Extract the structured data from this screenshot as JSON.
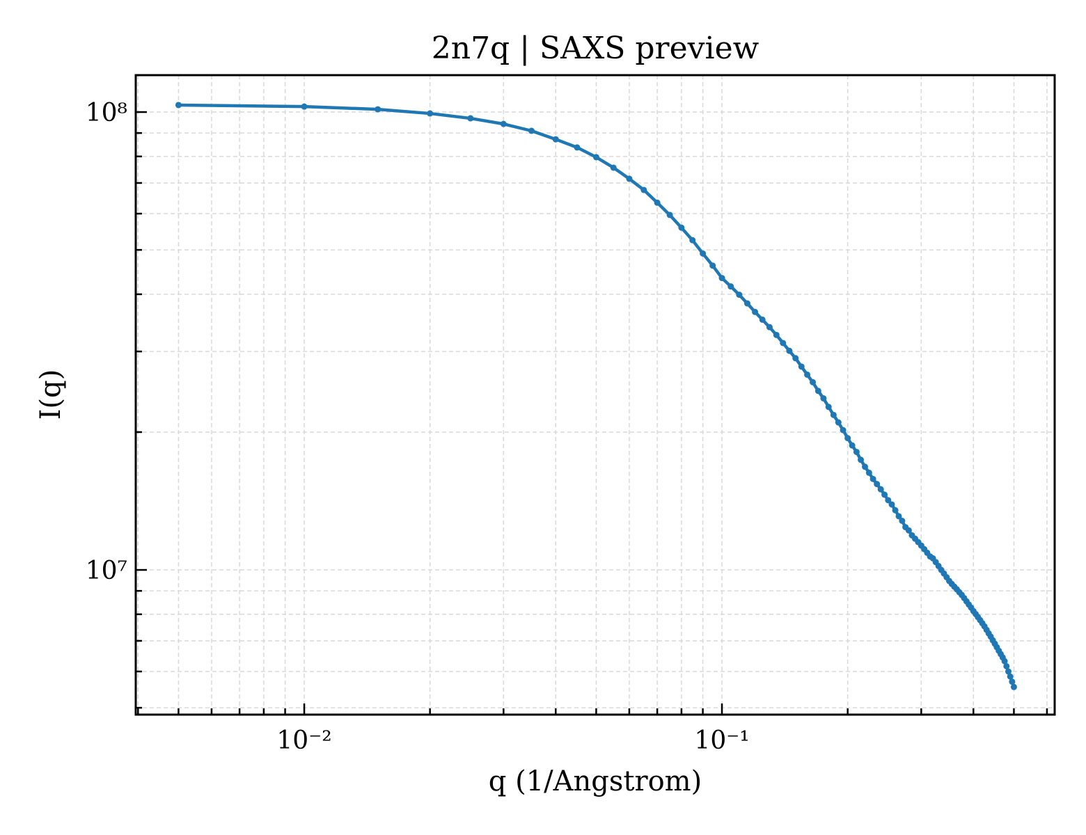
{
  "chart_data": {
    "type": "line",
    "title": "2n7q | SAXS preview",
    "x_label": "q (1/Angstrom)",
    "y_label": "I(q)",
    "x_scale": "log",
    "y_scale": "log",
    "grid": true,
    "color": "#1f77b4",
    "x": [
      0.005,
      0.01,
      0.015,
      0.02,
      0.025,
      0.03,
      0.035,
      0.04,
      0.045,
      0.05,
      0.055,
      0.06,
      0.065,
      0.07,
      0.075,
      0.08,
      0.085,
      0.09,
      0.095,
      0.1,
      0.105,
      0.11,
      0.115,
      0.12,
      0.125,
      0.13,
      0.135,
      0.14,
      0.145,
      0.15,
      0.155,
      0.16,
      0.165,
      0.17,
      0.175,
      0.18,
      0.185,
      0.19,
      0.195,
      0.2,
      0.205,
      0.21,
      0.215,
      0.22,
      0.225,
      0.23,
      0.235,
      0.24,
      0.245,
      0.25,
      0.255,
      0.26,
      0.265,
      0.27,
      0.275,
      0.28,
      0.285,
      0.29,
      0.295,
      0.3,
      0.305,
      0.31,
      0.315,
      0.32,
      0.325,
      0.33,
      0.335,
      0.34,
      0.345,
      0.35,
      0.355,
      0.36,
      0.365,
      0.37,
      0.375,
      0.38,
      0.385,
      0.39,
      0.395,
      0.4,
      0.405,
      0.41,
      0.415,
      0.42,
      0.425,
      0.43,
      0.435,
      0.44,
      0.445,
      0.45,
      0.455,
      0.46,
      0.465,
      0.47,
      0.475,
      0.48,
      0.485,
      0.49,
      0.495,
      0.5
    ],
    "values": [
      103600000.0,
      102800000.0,
      101400000.0,
      99300000.0,
      96900000.0,
      94200000.0,
      91000000.0,
      87200000.0,
      83700000.0,
      79700000.0,
      75600000.0,
      71500000.0,
      67600000.0,
      63400000.0,
      59600000.0,
      55900000.0,
      52500000.0,
      49100000.0,
      46200000.0,
      43400000.0,
      41600000.0,
      39900000.0,
      38200000.0,
      36600000.0,
      35200000.0,
      33900000.0,
      32600000.0,
      31300000.0,
      30100000.0,
      29000000.0,
      27800000.0,
      26700000.0,
      25700000.0,
      24600000.0,
      23700000.0,
      22700000.0,
      21800000.0,
      21000000.0,
      20200000.0,
      19400000.0,
      18700000.0,
      18100000.0,
      17400000.0,
      16800000.0,
      16300000.0,
      15800000.0,
      15400000.0,
      15000000.0,
      14600000.0,
      14200000.0,
      13900000.0,
      13500000.0,
      13100000.0,
      12800000.0,
      12400000.0,
      12200000.0,
      11900000.0,
      11700000.0,
      11500000.0,
      11300000.0,
      11100000.0,
      10900000.0,
      10700000.0,
      10600000.0,
      10400000.0,
      10200000.0,
      10000000.0,
      9820000.0,
      9640000.0,
      9460000.0,
      9320000.0,
      9190000.0,
      9070000.0,
      8940000.0,
      8820000.0,
      8680000.0,
      8540000.0,
      8400000.0,
      8270000.0,
      8130000.0,
      8010000.0,
      7890000.0,
      7770000.0,
      7650000.0,
      7530000.0,
      7400000.0,
      7270000.0,
      7150000.0,
      7020000.0,
      6900000.0,
      6780000.0,
      6660000.0,
      6550000.0,
      6440000.0,
      6320000.0,
      6160000.0,
      6000000.0,
      5850000.0,
      5700000.0,
      5550000.0
    ],
    "xlim": [
      0.00395,
      0.626
    ],
    "ylim": [
      4830000.0,
      120400000.0
    ],
    "xticks": [
      {
        "value": 0.01,
        "label": "10⁻²"
      },
      {
        "value": 0.1,
        "label": "10⁻¹"
      }
    ],
    "yticks": [
      {
        "value": 10000000.0,
        "label": "10⁷"
      },
      {
        "value": 100000000.0,
        "label": "10⁸"
      }
    ],
    "xminor": [
      0.004,
      0.005,
      0.006,
      0.007,
      0.008,
      0.009,
      0.02,
      0.03,
      0.04,
      0.05,
      0.06,
      0.07,
      0.08,
      0.09,
      0.2,
      0.3,
      0.4,
      0.5,
      0.6
    ],
    "yminor": [
      5000000.0,
      6000000.0,
      7000000.0,
      8000000.0,
      9000000.0,
      20000000.0,
      30000000.0,
      40000000.0,
      50000000.0,
      60000000.0,
      70000000.0,
      80000000.0,
      90000000.0
    ]
  }
}
